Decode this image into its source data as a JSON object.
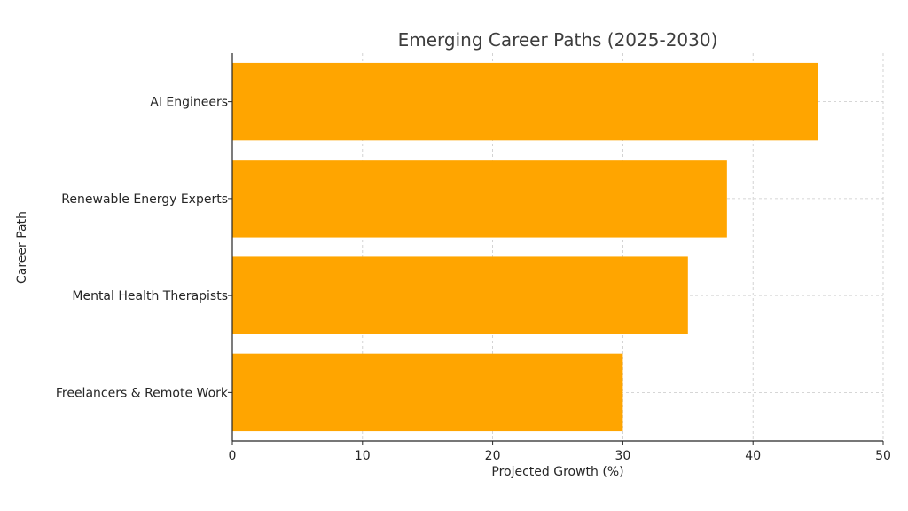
{
  "chart_data": {
    "type": "bar",
    "orientation": "horizontal",
    "title": "Emerging Career Paths (2025-2030)",
    "xlabel": "Projected Growth (%)",
    "ylabel": "Career Path",
    "xlim": [
      0,
      50
    ],
    "x_ticks": [
      0,
      10,
      20,
      30,
      40,
      50
    ],
    "categories": [
      "AI Engineers",
      "Renewable Energy Experts",
      "Mental Health Therapists",
      "Freelancers & Remote Work"
    ],
    "values": [
      45,
      38,
      35,
      30
    ],
    "bar_color": "#FFA500",
    "grid": true,
    "grid_style": "dashed",
    "legend": "none"
  }
}
